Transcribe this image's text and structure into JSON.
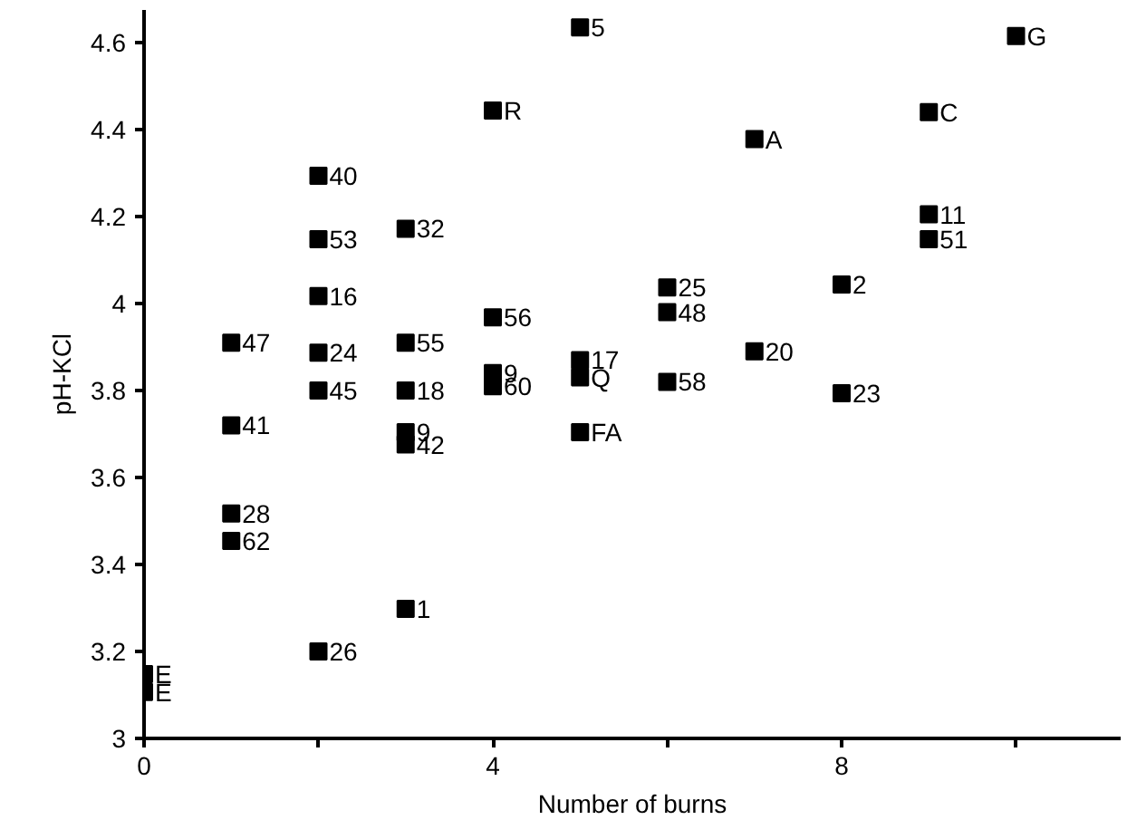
{
  "chart_data": {
    "type": "scatter",
    "xlabel": "Number of burns",
    "ylabel": "pH-KCl",
    "x": [
      0,
      0,
      1,
      1,
      1,
      1,
      2,
      2,
      2,
      2,
      2,
      2,
      3,
      3,
      3,
      3,
      3,
      3,
      4,
      4,
      4,
      4,
      5,
      5,
      5,
      5,
      6,
      6,
      6,
      7,
      7,
      8,
      8,
      9,
      9,
      9,
      10
    ],
    "values": [
      3.148,
      3.107,
      3.91,
      3.72,
      3.517,
      3.454,
      4.294,
      4.148,
      4.017,
      3.887,
      3.8,
      3.2,
      4.172,
      3.91,
      3.8,
      3.704,
      3.676,
      3.298,
      4.444,
      3.968,
      3.84,
      3.81,
      4.635,
      3.87,
      3.83,
      3.704,
      4.037,
      3.98,
      3.82,
      4.378,
      3.89,
      4.044,
      3.794,
      4.44,
      4.205,
      4.148,
      4.615
    ],
    "color": "#000000",
    "marker": "square",
    "grid": false,
    "xlim": [
      0,
      11.2
    ],
    "ylim": [
      3,
      4.675
    ],
    "xticks": [
      0,
      {
        "value": 2,
        "label": null
      },
      4,
      {
        "value": 6,
        "label": null
      },
      8,
      {
        "value": 10,
        "label": null
      }
    ],
    "yticks": [
      3,
      3.2,
      3.4,
      3.6,
      3.8,
      4,
      4.2,
      4.4,
      4.6
    ],
    "annotations": [
      {
        "text": "E",
        "x": 0,
        "y": 3.148
      },
      {
        "text": "E",
        "x": 0,
        "y": 3.107
      },
      {
        "text": "47",
        "x": 1,
        "y": 3.91
      },
      {
        "text": "41",
        "x": 1,
        "y": 3.72
      },
      {
        "text": "28",
        "x": 1,
        "y": 3.517
      },
      {
        "text": "62",
        "x": 1,
        "y": 3.454
      },
      {
        "text": "40",
        "x": 2,
        "y": 4.294
      },
      {
        "text": "53",
        "x": 2,
        "y": 4.148
      },
      {
        "text": "16",
        "x": 2,
        "y": 4.017
      },
      {
        "text": "24",
        "x": 2,
        "y": 3.887
      },
      {
        "text": "45",
        "x": 2,
        "y": 3.8
      },
      {
        "text": "26",
        "x": 2,
        "y": 3.2
      },
      {
        "text": "32",
        "x": 3,
        "y": 4.172
      },
      {
        "text": "55",
        "x": 3,
        "y": 3.91
      },
      {
        "text": "18",
        "x": 3,
        "y": 3.8
      },
      {
        "text": "9",
        "x": 3,
        "y": 3.704
      },
      {
        "text": "42",
        "x": 3,
        "y": 3.676
      },
      {
        "text": "1",
        "x": 3,
        "y": 3.298
      },
      {
        "text": "R",
        "x": 4,
        "y": 4.444
      },
      {
        "text": "56",
        "x": 4,
        "y": 3.968
      },
      {
        "text": "9",
        "x": 4,
        "y": 3.84
      },
      {
        "text": "60",
        "x": 4,
        "y": 3.81
      },
      {
        "text": "5",
        "x": 5,
        "y": 4.635
      },
      {
        "text": "17",
        "x": 5,
        "y": 3.87
      },
      {
        "text": "Q",
        "x": 5,
        "y": 3.83
      },
      {
        "text": "FA",
        "x": 5,
        "y": 3.704
      },
      {
        "text": "25",
        "x": 6,
        "y": 4.037
      },
      {
        "text": "48",
        "x": 6,
        "y": 3.98
      },
      {
        "text": "58",
        "x": 6,
        "y": 3.82
      },
      {
        "text": "A",
        "x": 7,
        "y": 4.378
      },
      {
        "text": "20",
        "x": 7,
        "y": 3.89
      },
      {
        "text": "2",
        "x": 8,
        "y": 4.044
      },
      {
        "text": "23",
        "x": 8,
        "y": 3.794
      },
      {
        "text": "C",
        "x": 9,
        "y": 4.44
      },
      {
        "text": "11",
        "x": 9,
        "y": 4.205
      },
      {
        "text": "51",
        "x": 9,
        "y": 4.148
      },
      {
        "text": "G",
        "x": 10,
        "y": 4.615
      }
    ]
  }
}
